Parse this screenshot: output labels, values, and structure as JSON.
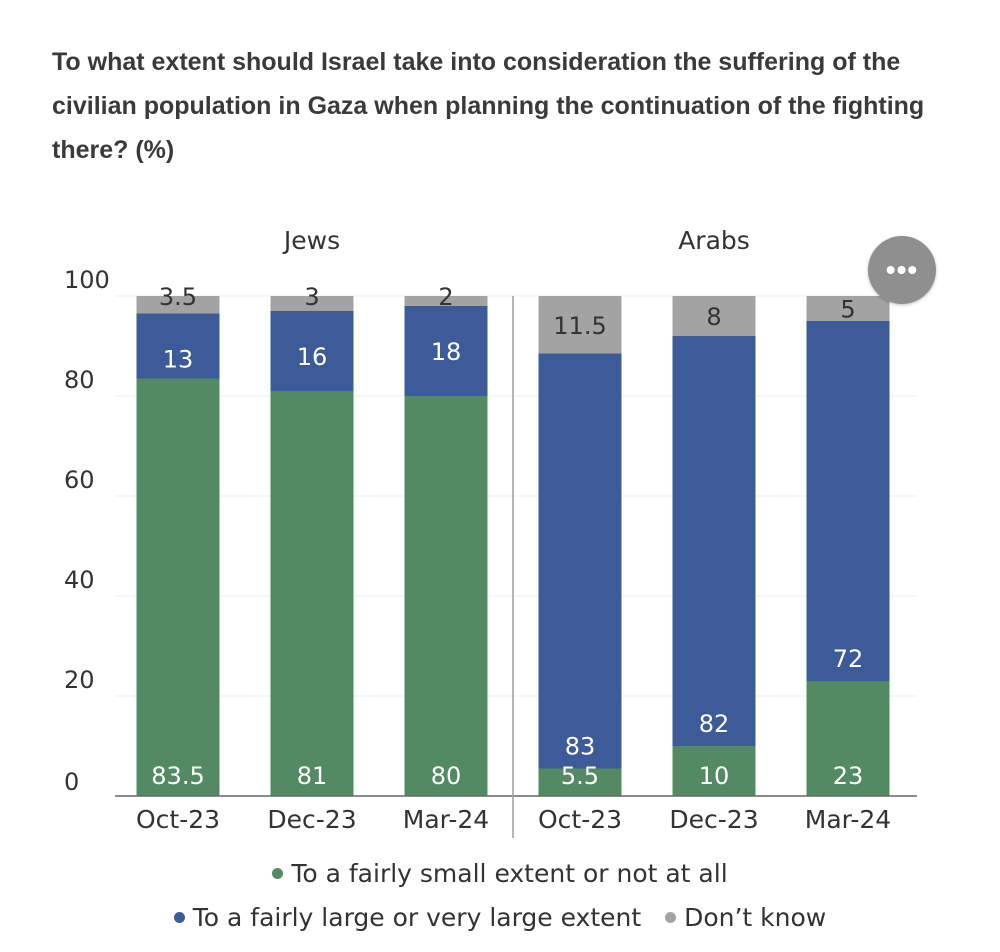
{
  "chart_data": {
    "type": "bar",
    "stacked": true,
    "title": "To what extent should Israel take into consideration the suffering of the civilian population in Gaza when planning the continuation of the fighting there? (%)",
    "groups": [
      {
        "label": "Jews",
        "categories": [
          "Oct-23",
          "Dec-23",
          "Mar-24"
        ]
      },
      {
        "label": "Arabs",
        "categories": [
          "Oct-23",
          "Dec-23",
          "Mar-24"
        ]
      }
    ],
    "series": [
      {
        "name": "To a fairly small extent or not at all",
        "color": "#538a63",
        "values": [
          83.5,
          81,
          80,
          5.5,
          10,
          23
        ],
        "labels": [
          "83.5",
          "81",
          "80",
          "5.5",
          "10",
          "23"
        ]
      },
      {
        "name": "To a fairly large or very large extent",
        "color": "#3d5a99",
        "values": [
          13,
          16,
          18,
          83,
          82,
          72
        ],
        "labels": [
          "13",
          "16",
          "18",
          "83",
          "82",
          "72"
        ]
      },
      {
        "name": "Don’t know",
        "color": "#a3a3a3",
        "values": [
          3.5,
          3,
          2,
          11.5,
          8,
          5
        ],
        "labels": [
          "3.5",
          "3",
          "2",
          "11.5",
          "8",
          "5"
        ]
      }
    ],
    "y_ticks": [
      "0",
      "20",
      "40",
      "60",
      "80",
      "100"
    ],
    "ylim": [
      0,
      100
    ],
    "grid": true,
    "legend_position": "bottom"
  },
  "menu": {
    "more_label": "•••"
  }
}
